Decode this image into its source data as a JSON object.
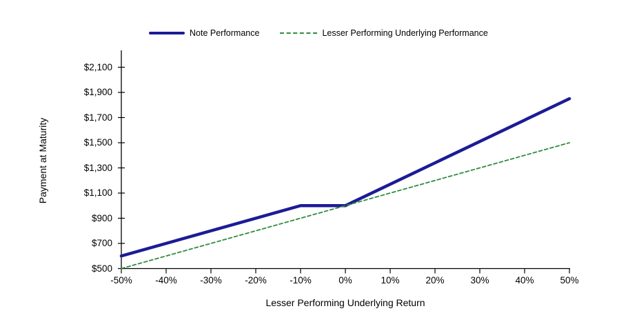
{
  "legend": {
    "items": [
      {
        "id": "note",
        "label": "Note Performance",
        "style": "solid"
      },
      {
        "id": "underlying",
        "label": "Lesser Performing Underlying Performance",
        "style": "dashed"
      }
    ]
  },
  "axes": {
    "x_title": "Lesser Performing Underlying Return",
    "y_title": "Payment at Maturity"
  },
  "colors": {
    "note_line": "#1C1C96",
    "underlying_line": "#2E8B3E",
    "axis": "#000000",
    "text": "#000000",
    "background": "#FFFFFF"
  },
  "chart_data": {
    "type": "line",
    "title": "",
    "xlabel": "Lesser Performing Underlying Return",
    "ylabel": "Payment at Maturity",
    "xlim": [
      -50,
      50
    ],
    "ylim": [
      500,
      2100
    ],
    "grid": false,
    "legend_position": "top",
    "x_ticks": {
      "values": [
        -50,
        -40,
        -30,
        -20,
        -10,
        0,
        10,
        20,
        30,
        40,
        50
      ],
      "labels": [
        "-50%",
        "-40%",
        "-30%",
        "-20%",
        "-10%",
        "0%",
        "10%",
        "20%",
        "30%",
        "40%",
        "50%"
      ]
    },
    "y_ticks": {
      "values": [
        500,
        700,
        900,
        1100,
        1300,
        1500,
        1700,
        1900,
        2100
      ],
      "labels": [
        "$500",
        "$700",
        "$900",
        "$1,100",
        "$1,300",
        "$1,500",
        "$1,700",
        "$1,900",
        "$2,100"
      ]
    },
    "series": [
      {
        "name": "Note Performance",
        "color": "#1C1C96",
        "style": "solid",
        "stroke_width": 4.5,
        "points": [
          [
            -50,
            600
          ],
          [
            -10,
            1000
          ],
          [
            0,
            1000
          ],
          [
            50,
            1850
          ]
        ]
      },
      {
        "name": "Lesser Performing Underlying Performance",
        "color": "#2E8B3E",
        "style": "dashed",
        "stroke_width": 1.8,
        "points": [
          [
            -50,
            500
          ],
          [
            0,
            1000
          ],
          [
            50,
            1500
          ]
        ]
      }
    ]
  }
}
